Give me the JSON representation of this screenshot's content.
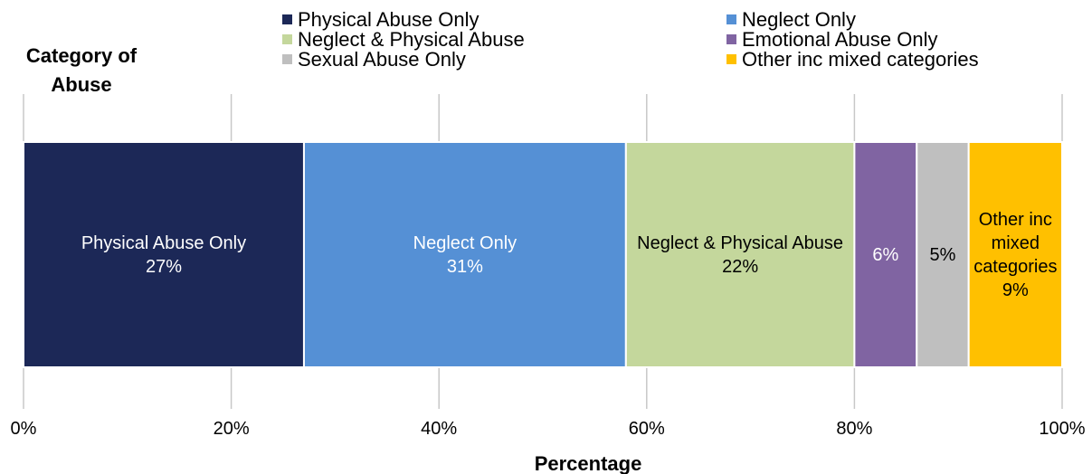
{
  "chart_data": {
    "type": "stacked-bar-horizontal",
    "y_label": "Category of Abuse",
    "x_label": "Percentage",
    "categories": [
      null
    ],
    "series": [
      {
        "name": "Physical Abuse Only",
        "color": "#1c2857",
        "values": [
          27
        ],
        "value_labels": [
          "27%"
        ]
      },
      {
        "name": "Neglect Only",
        "color": "#5590d5",
        "values": [
          31
        ],
        "value_labels": [
          "31%"
        ]
      },
      {
        "name": "Neglect & Physical Abuse",
        "color": "#c4d79c",
        "values": [
          22
        ],
        "value_labels": [
          "22%"
        ]
      },
      {
        "name": "Emotional Abuse Only",
        "color": "#8064a2",
        "values": [
          6
        ],
        "value_labels": [
          "6%"
        ]
      },
      {
        "name": "Sexual Abuse Only",
        "color": "#bfbfbf",
        "values": [
          5
        ],
        "value_labels": [
          "5%"
        ]
      },
      {
        "name": "Other inc mixed categories",
        "color": "#ffc000",
        "values": [
          9
        ],
        "value_labels": [
          "9%"
        ]
      }
    ],
    "xlim": [
      0,
      100
    ],
    "xticks": [
      {
        "value": 0,
        "label": "0%"
      },
      {
        "value": 20,
        "label": "20%"
      },
      {
        "value": 40,
        "label": "40%"
      },
      {
        "value": 60,
        "label": "60%"
      },
      {
        "value": 80,
        "label": "80%"
      },
      {
        "value": 100,
        "label": "100%"
      }
    ],
    "grid": true,
    "legend": "top"
  }
}
